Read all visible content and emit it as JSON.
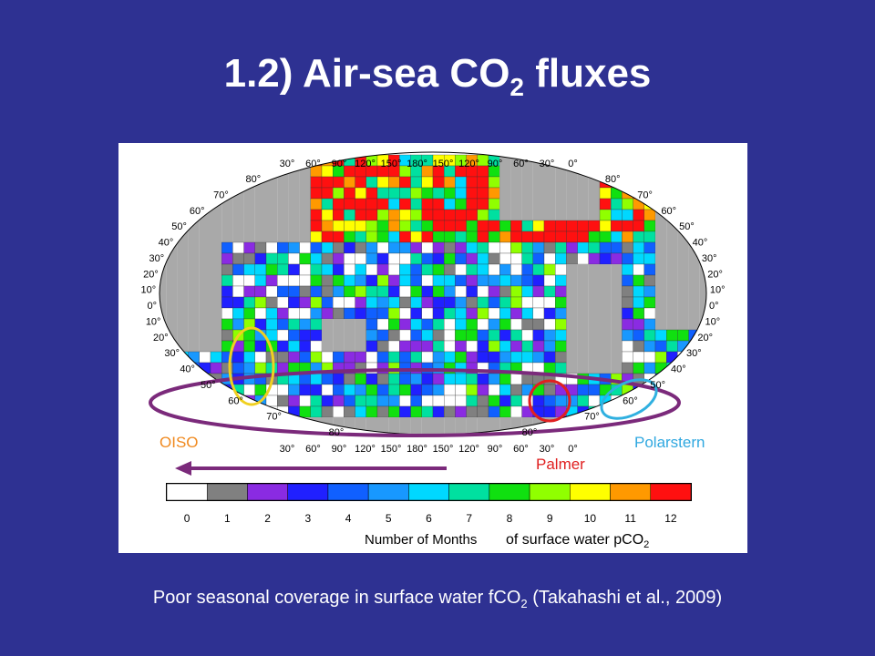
{
  "slide": {
    "title": {
      "main": "1.2) Air-sea CO",
      "sub": "2",
      "tail": " fluxes"
    },
    "map": {
      "lon_labels": [
        "30°",
        "60°",
        "90°",
        "120°",
        "150°",
        "180°",
        "150°",
        "120°",
        "90°",
        "60°",
        "30°",
        "0°"
      ],
      "lat_labels": [
        "80°",
        "70°",
        "60°",
        "50°",
        "40°",
        "30°",
        "20°",
        "10°",
        "0°",
        "10°",
        "20°",
        "30°",
        "40°",
        "50°",
        "60°",
        "70°",
        "80°"
      ],
      "annotations": {
        "oiso": "OISO",
        "polarstern": "Polarstern",
        "palmer": "Palmer"
      },
      "colorbar": {
        "ticks": [
          "0",
          "1",
          "2",
          "3",
          "4",
          "5",
          "6",
          "7",
          "8",
          "9",
          "10",
          "11",
          "12"
        ],
        "label": "Number of Months"
      },
      "note": {
        "main": "of surface water pCO",
        "sub": "2"
      }
    },
    "caption": {
      "main": "Poor seasonal coverage in surface water fCO",
      "sub": "2",
      "tail": " (Takahashi et al., 2009)"
    }
  }
}
